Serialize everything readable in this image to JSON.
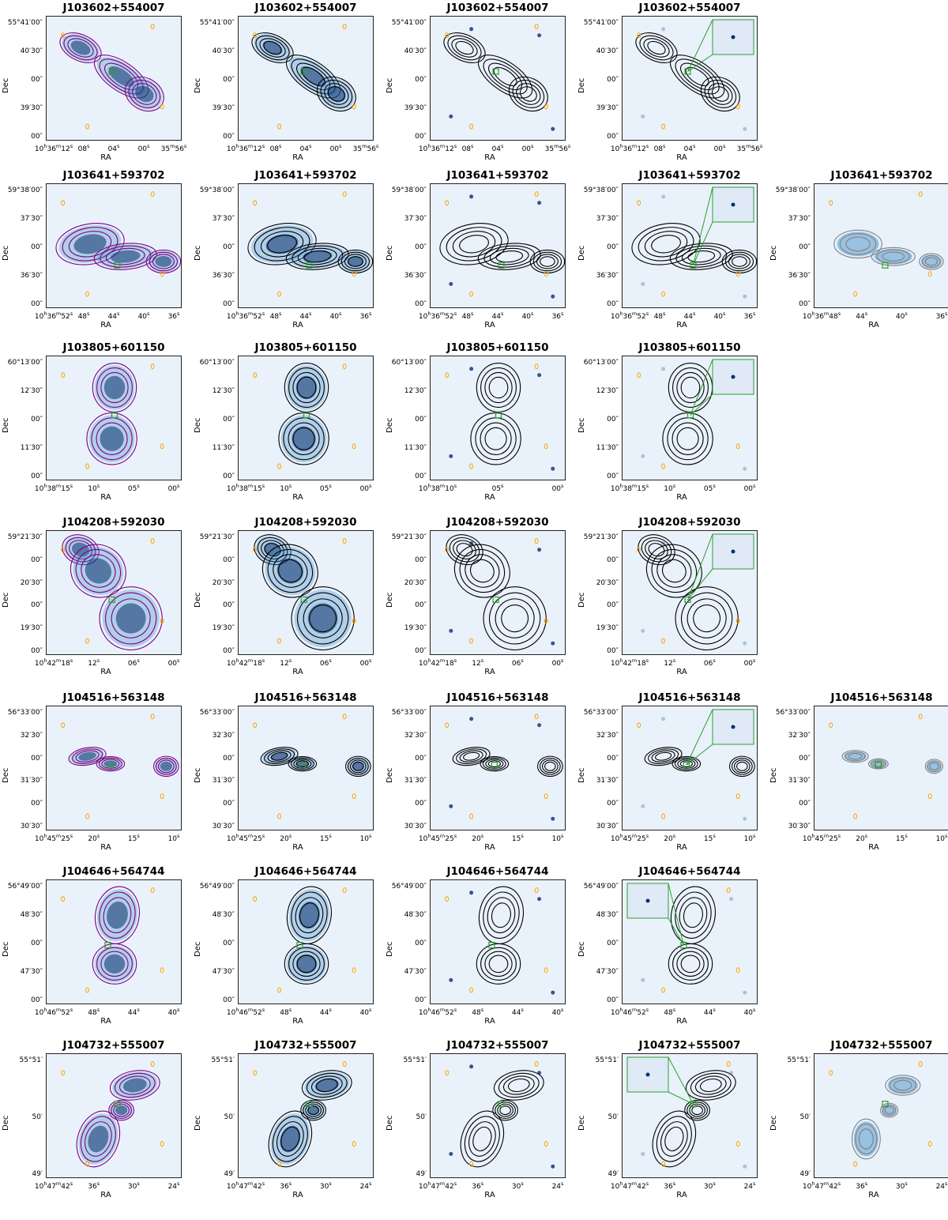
{
  "axis_labels": {
    "x": "RA",
    "y": "Dec"
  },
  "colors": {
    "image_background": "#e9f2fb",
    "image_dark": "#08306b",
    "image_mid": "#4a90c8",
    "contour_black": "#000000",
    "contour_purple": "#800080",
    "contour_orange": "#ffa500",
    "contour_gray": "#808080",
    "marker_green": "#2e9e2e"
  },
  "rows": [
    {
      "source": "J103602+554007",
      "y_ticks": [
        "55°41′00″",
        "40′30″",
        "00″",
        "39′30″",
        "00″"
      ],
      "x_ticks_full": [
        "10h36m12s",
        "08s",
        "04s",
        "00s",
        "35m56s"
      ],
      "panels": [
        "lowres",
        "highres",
        "optical",
        "inset"
      ]
    },
    {
      "source": "J103641+593702",
      "y_ticks": [
        "59°38′00″",
        "37′30″",
        "00″",
        "36′30″",
        "00″"
      ],
      "x_ticks_full": [
        "10h36m52s",
        "48s",
        "44s",
        "40s",
        "36s"
      ],
      "x_ticks_short": [
        "10h36m48s",
        "44s",
        "40s",
        "36s"
      ],
      "panels": [
        "lowres",
        "highres",
        "optical",
        "inset",
        "xray"
      ]
    },
    {
      "source": "J103805+601150",
      "y_ticks": [
        "60°13′00″",
        "12′30″",
        "00″",
        "11′30″",
        "00″"
      ],
      "x_ticks_full": [
        "10h38m15s",
        "10s",
        "05s",
        "00s"
      ],
      "x_ticks_short": [
        "10h38m10s",
        "05s",
        "00s"
      ],
      "panels": [
        "lowres",
        "highres",
        "optical",
        "inset"
      ]
    },
    {
      "source": "J104208+592030",
      "y_ticks": [
        "59°21′30″",
        "00″",
        "20′30″",
        "00″",
        "19′30″",
        "00″"
      ],
      "x_ticks_full": [
        "10h42m18s",
        "12s",
        "06s",
        "00s"
      ],
      "panels": [
        "lowres",
        "highres",
        "optical",
        "inset"
      ]
    },
    {
      "source": "J104516+563148",
      "y_ticks": [
        "56°33′00″",
        "32′30″",
        "00″",
        "31′30″",
        "00″",
        "30′30″"
      ],
      "x_ticks_full": [
        "10h45m25s",
        "20s",
        "15s",
        "10s"
      ],
      "panels": [
        "lowres",
        "highres",
        "optical",
        "inset",
        "xray"
      ]
    },
    {
      "source": "J104646+564744",
      "y_ticks": [
        "56°49′00″",
        "48′30″",
        "00″",
        "47′30″",
        "00″"
      ],
      "x_ticks_full": [
        "10h46m52s",
        "48s",
        "44s",
        "40s"
      ],
      "panels": [
        "lowres",
        "highres",
        "optical",
        "inset"
      ]
    },
    {
      "source": "J104732+555007",
      "y_ticks": [
        "55°51′",
        "50′",
        "49′"
      ],
      "x_ticks_full": [
        "10h47m42s",
        "36s",
        "30s",
        "24s"
      ],
      "panels": [
        "lowres",
        "highres",
        "optical",
        "inset",
        "xray"
      ]
    }
  ]
}
